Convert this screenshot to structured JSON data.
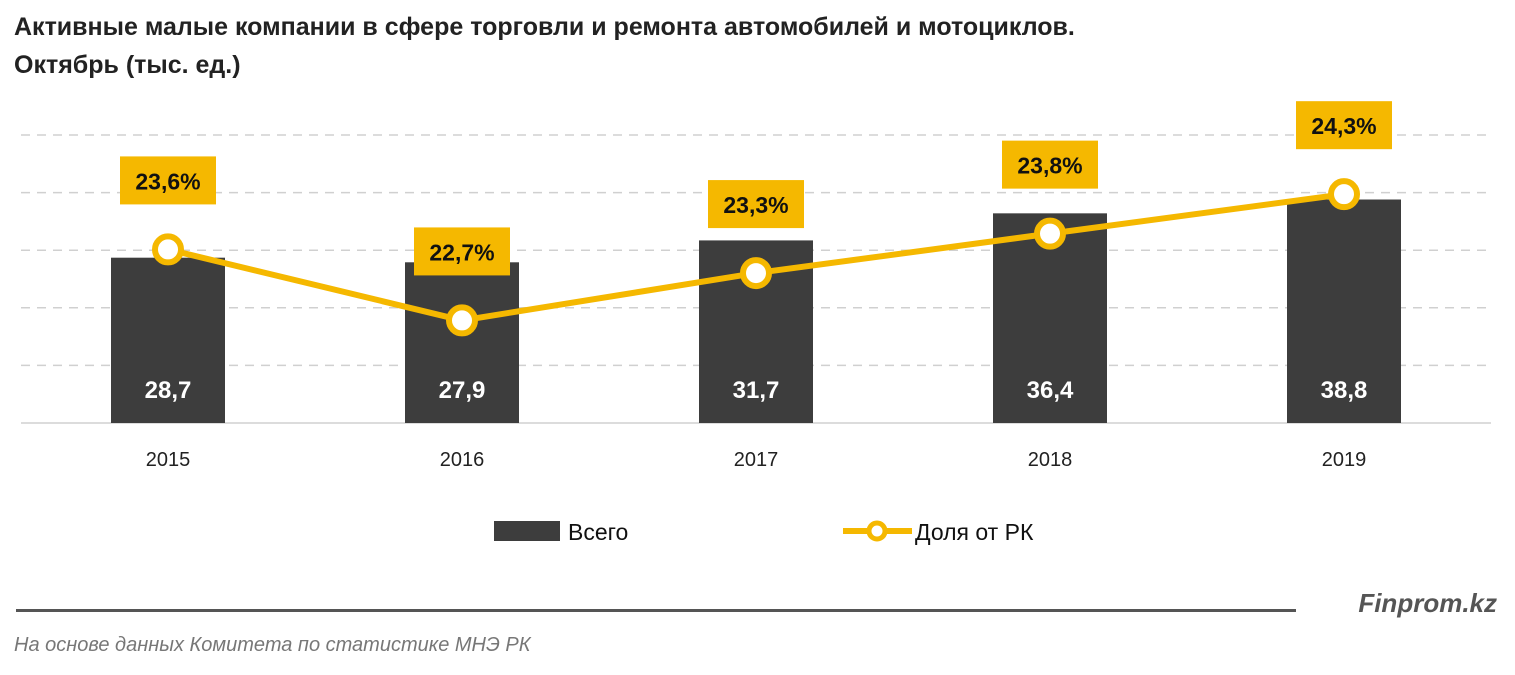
{
  "chart_data": {
    "type": "bar+line",
    "title": "Активные малые компании в сфере торговли и ремонта автомобилей и мотоциклов.",
    "subtitle": "Октябрь (тыс. ед.)",
    "categories": [
      "2015",
      "2016",
      "2017",
      "2018",
      "2019"
    ],
    "series": [
      {
        "name": "Всего",
        "type": "bar",
        "values": [
          28.7,
          27.9,
          31.7,
          36.4,
          38.8
        ],
        "labels": [
          "28,7",
          "27,9",
          "31,7",
          "36,4",
          "38,8"
        ],
        "color": "#3d3d3d"
      },
      {
        "name": "Доля от РК",
        "type": "line",
        "axis": "secondary",
        "values": [
          23.6,
          22.7,
          23.3,
          23.8,
          24.3
        ],
        "labels": [
          "23,6%",
          "22,7%",
          "23,3%",
          "23,8%",
          "24,3%"
        ],
        "color": "#f5b800"
      }
    ],
    "ylim": [
      0,
      50
    ],
    "ylim_secondary": [
      21.4,
      25.05
    ],
    "grid": true,
    "legend": "bottom"
  },
  "brand": "Finprom.kz",
  "source": "На основе данных  Комитета по статистике МНЭ РК"
}
